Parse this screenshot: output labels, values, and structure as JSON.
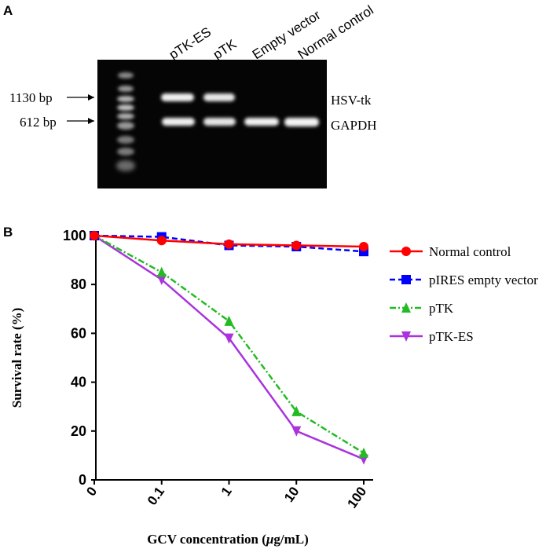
{
  "panels": {
    "a_label": "A",
    "b_label": "B"
  },
  "gel": {
    "lanes": [
      "pTK-ES",
      "pTK",
      "Empty vector",
      "Normal control"
    ],
    "size_markers": [
      {
        "label": "1130 bp"
      },
      {
        "label": "612 bp"
      }
    ],
    "band_names": [
      "HSV-tk",
      "GAPDH"
    ],
    "bands": {
      "HSV-tk": [
        true,
        true,
        false,
        false
      ],
      "GAPDH": [
        true,
        true,
        true,
        true
      ]
    }
  },
  "chart_data": {
    "type": "line",
    "categories": [
      "0",
      "0.1",
      "1",
      "10",
      "100"
    ],
    "xlabel_prefix": "GCV concentration (",
    "xlabel_unit_mu": "μ",
    "xlabel_suffix": "g/mL)",
    "ylabel": "Survival rate (%)",
    "ylim": [
      0,
      100
    ],
    "yticks": [
      0,
      20,
      40,
      60,
      80,
      100
    ],
    "grid": false,
    "legend_position": "right",
    "series": [
      {
        "name": "Normal control",
        "values": [
          100,
          98,
          96.5,
          96,
          95.5
        ],
        "color": "#ff0000",
        "marker": "circle",
        "dash": "solid"
      },
      {
        "name": "pIRES empty vector",
        "values": [
          100,
          99.5,
          96,
          95.5,
          93.5
        ],
        "color": "#0000ff",
        "marker": "square",
        "dash": "dashed"
      },
      {
        "name": "pTK",
        "values": [
          100,
          85,
          65,
          28,
          11
        ],
        "color": "#22bb22",
        "marker": "triangle-up",
        "dash": "dashdot"
      },
      {
        "name": "pTK-ES",
        "values": [
          100,
          82,
          58,
          20,
          8.5
        ],
        "color": "#aa33dd",
        "marker": "triangle-down",
        "dash": "solid"
      }
    ]
  }
}
